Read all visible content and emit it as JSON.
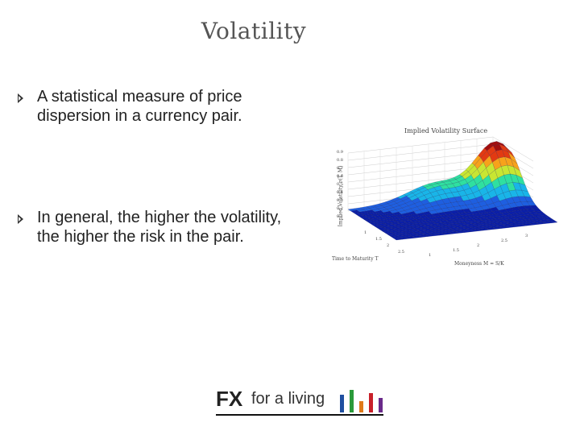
{
  "slide": {
    "title": "Volatility",
    "bullets": [
      "A statistical measure of price dispersion in a currency pair.",
      "In general, the higher the volatility, the higher the risk in the pair."
    ]
  },
  "figure": {
    "title": "Implied Volatility Surface",
    "z_label": "Implied Volatility σ(T, M)",
    "x_label": "Time to Maturity T",
    "y_label": "Moneyness M = S/K",
    "z_ticks": [
      "0.1",
      "0.2",
      "0.3",
      "0.4",
      "0.5",
      "0.6",
      "0.7",
      "0.8",
      "0.9"
    ],
    "t_ticks": [
      "1",
      "1.5",
      "2",
      "2.5"
    ],
    "m_ticks": [
      "1",
      "1.5",
      "2",
      "2.5",
      "3"
    ],
    "colormap": [
      "#0b1fa8",
      "#1e5fe0",
      "#19b5e8",
      "#2fe0a0",
      "#c8e632",
      "#f7a21b",
      "#e23a12",
      "#a10e0e"
    ]
  },
  "logo": {
    "fx": "FX",
    "rest": "for a living",
    "bar_colors": [
      "#1f4fa0",
      "#2a9a3a",
      "#e07a1a",
      "#c8202a",
      "#6a2a8a"
    ]
  }
}
